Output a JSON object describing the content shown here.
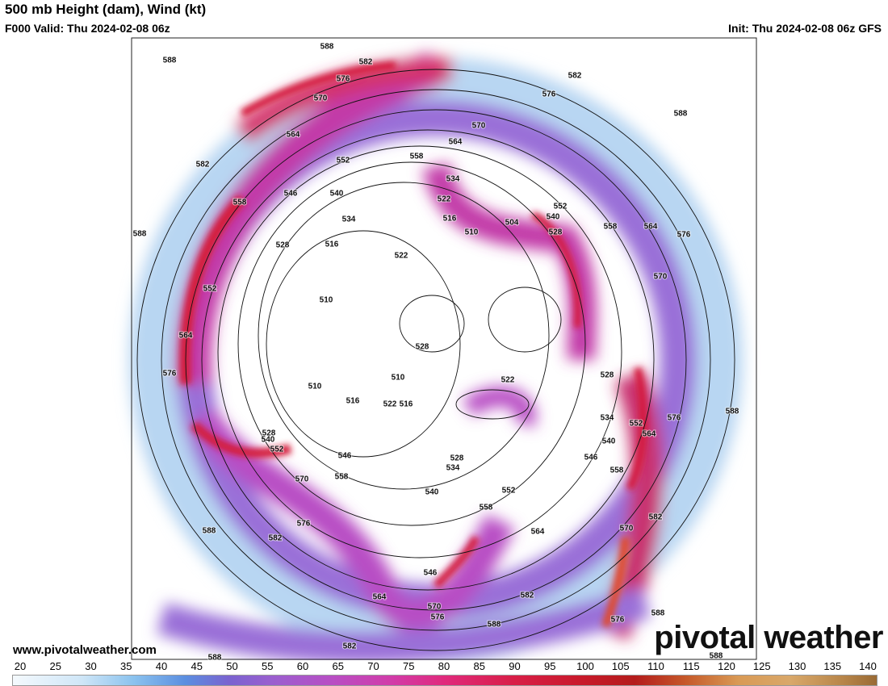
{
  "header": {
    "title": "500 mb Height (dam), Wind (kt)",
    "valid": "F000 Valid: Thu 2024-02-08 06z",
    "init": "Init: Thu 2024-02-08 06z GFS"
  },
  "website": "www.pivotalweather.com",
  "watermark": "pivotal weather",
  "contour_labels": [
    "588",
    "588",
    "582",
    "576",
    "570",
    "582",
    "576",
    "570",
    "564",
    "564",
    "558",
    "552",
    "582",
    "546",
    "540",
    "558",
    "534",
    "534",
    "522",
    "516",
    "510",
    "504",
    "552",
    "540",
    "528",
    "558",
    "564",
    "576",
    "588",
    "588",
    "528",
    "516",
    "522",
    "570",
    "552",
    "510",
    "564",
    "528",
    "576",
    "528",
    "510",
    "522",
    "510",
    "516",
    "522",
    "516",
    "534",
    "552",
    "576",
    "588",
    "564",
    "540",
    "528",
    "540",
    "552",
    "546",
    "528",
    "534",
    "546",
    "558",
    "570",
    "558",
    "540",
    "552",
    "558",
    "582",
    "564",
    "576",
    "588",
    "582",
    "570",
    "546",
    "564",
    "582",
    "570",
    "576",
    "588",
    "576",
    "588",
    "582",
    "588",
    "588"
  ],
  "colorbar": {
    "ticks": [
      20,
      25,
      30,
      35,
      40,
      45,
      50,
      55,
      60,
      65,
      70,
      75,
      80,
      85,
      90,
      95,
      100,
      105,
      110,
      115,
      120,
      125,
      130,
      135,
      140
    ]
  }
}
